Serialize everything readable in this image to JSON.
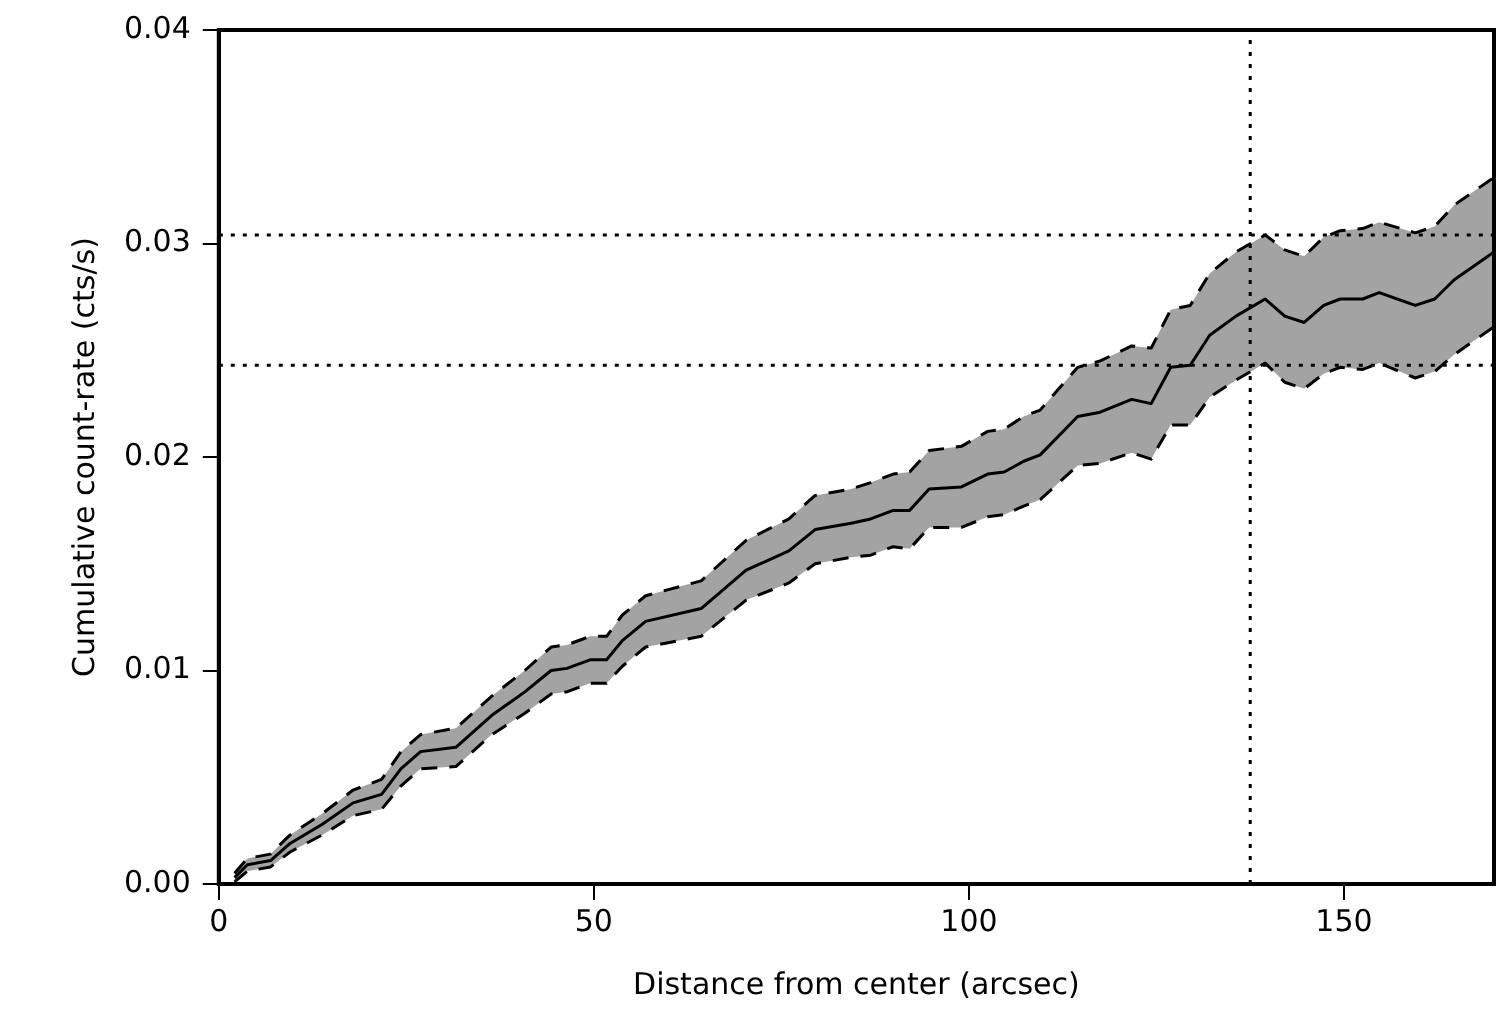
{
  "chart_data": {
    "type": "line",
    "xlabel": "Distance from center (arcsec)",
    "ylabel": "Cumulative count-rate (cts/s)",
    "xlim": [
      0,
      170
    ],
    "xticks": [
      0,
      50,
      100,
      150
    ],
    "ylim": [
      0,
      0.04
    ],
    "yticks": [
      {
        "value": 0,
        "label": "0.00"
      },
      {
        "value": 0.01,
        "label": "0.01"
      },
      {
        "value": 0.02,
        "label": "0.02"
      },
      {
        "value": 0.03,
        "label": "0.03"
      },
      {
        "value": 0.04,
        "label": "0.04"
      }
    ],
    "grid": false,
    "legend": false,
    "marker": "none",
    "x": [
      2.1,
      3.8,
      6.9,
      9.5,
      13.8,
      17.9,
      21.7,
      24.3,
      26.9,
      31.6,
      36.4,
      40.8,
      44.3,
      46.4,
      49.5,
      51.7,
      53.8,
      56.9,
      64.3,
      70.3,
      76,
      79.5,
      84.3,
      86.9,
      89.9,
      92.1,
      94.7,
      99,
      102.5,
      104.7,
      107.3,
      109.5,
      114.5,
      117.5,
      121.7,
      124.3,
      126.9,
      129.5,
      132.1,
      135.6,
      139.5,
      142.1,
      144.7,
      147.3,
      149.5,
      152.5,
      154.7,
      159.5,
      162.1,
      164.7,
      170
    ],
    "series": [
      {
        "color": "#000000",
        "line_style": "solid",
        "values": [
          0.0003,
          0.0009,
          0.0011,
          0.0019,
          0.0028,
          0.0038,
          0.0042,
          0.0054,
          0.0062,
          0.0064,
          0.0079,
          0.009,
          0.01,
          0.0101,
          0.0105,
          0.0105,
          0.0114,
          0.0123,
          0.0129,
          0.0147,
          0.0156,
          0.0166,
          0.0169,
          0.0171,
          0.0175,
          0.0175,
          0.0185,
          0.0186,
          0.0192,
          0.0193,
          0.0198,
          0.0201,
          0.0219,
          0.0221,
          0.0227,
          0.0225,
          0.0242,
          0.0243,
          0.0257,
          0.0266,
          0.0274,
          0.0266,
          0.0263,
          0.0271,
          0.0274,
          0.0274,
          0.0277,
          0.0271,
          0.0274,
          0.0283,
          0.0296
        ],
        "lower": [
          0.0001,
          0.0006,
          0.0008,
          0.0015,
          0.0023,
          0.0032,
          0.0035,
          0.0046,
          0.0054,
          0.0055,
          0.007,
          0.008,
          0.0089,
          0.009,
          0.0094,
          0.0094,
          0.0102,
          0.0111,
          0.0116,
          0.0133,
          0.0141,
          0.015,
          0.0153,
          0.0154,
          0.0158,
          0.0157,
          0.0167,
          0.0167,
          0.0172,
          0.0173,
          0.0177,
          0.018,
          0.0196,
          0.0197,
          0.0202,
          0.0199,
          0.0215,
          0.0215,
          0.0228,
          0.0236,
          0.0244,
          0.0235,
          0.0232,
          0.0239,
          0.0242,
          0.0241,
          0.0244,
          0.0237,
          0.024,
          0.0248,
          0.0261
        ],
        "upper": [
          0.0005,
          0.0012,
          0.0014,
          0.0023,
          0.0033,
          0.0044,
          0.0049,
          0.0062,
          0.007,
          0.0073,
          0.0088,
          0.01,
          0.0111,
          0.0112,
          0.0116,
          0.0116,
          0.0126,
          0.0135,
          0.0142,
          0.0161,
          0.0171,
          0.0182,
          0.0185,
          0.0188,
          0.0192,
          0.0193,
          0.0203,
          0.0205,
          0.0212,
          0.0213,
          0.0219,
          0.0222,
          0.0242,
          0.0245,
          0.0252,
          0.0251,
          0.0269,
          0.0271,
          0.0286,
          0.0296,
          0.0304,
          0.0297,
          0.0294,
          0.0303,
          0.0306,
          0.0307,
          0.031,
          0.0305,
          0.0308,
          0.0318,
          0.0331
        ]
      },
      {
        "color": "#000000",
        "line_style": "dashed",
        "values": [
          0.0001,
          0.0006,
          0.0008,
          0.0015,
          0.0023,
          0.0032,
          0.0035,
          0.0046,
          0.0054,
          0.0055,
          0.007,
          0.008,
          0.0089,
          0.009,
          0.0094,
          0.0094,
          0.0102,
          0.0111,
          0.0116,
          0.0133,
          0.0141,
          0.015,
          0.0153,
          0.0154,
          0.0158,
          0.0157,
          0.0167,
          0.0167,
          0.0172,
          0.0173,
          0.0177,
          0.018,
          0.0196,
          0.0197,
          0.0202,
          0.0199,
          0.0215,
          0.0215,
          0.0228,
          0.0236,
          0.0244,
          0.0235,
          0.0232,
          0.0239,
          0.0242,
          0.0241,
          0.0244,
          0.0237,
          0.024,
          0.0248,
          0.0261
        ]
      },
      {
        "color": "#000000",
        "line_style": "dashed",
        "values": [
          0.0005,
          0.0012,
          0.0014,
          0.0023,
          0.0033,
          0.0044,
          0.0049,
          0.0062,
          0.007,
          0.0073,
          0.0088,
          0.01,
          0.0111,
          0.0112,
          0.0116,
          0.0116,
          0.0126,
          0.0135,
          0.0142,
          0.0161,
          0.0171,
          0.0182,
          0.0185,
          0.0188,
          0.0192,
          0.0193,
          0.0203,
          0.0205,
          0.0212,
          0.0213,
          0.0219,
          0.0222,
          0.0242,
          0.0245,
          0.0252,
          0.0251,
          0.0269,
          0.0271,
          0.0286,
          0.0296,
          0.0304,
          0.0297,
          0.0294,
          0.0303,
          0.0306,
          0.0307,
          0.031,
          0.0305,
          0.0308,
          0.0318,
          0.0331
        ]
      }
    ],
    "ref_lines": [
      {
        "axis": "y",
        "value": 0.0304,
        "line_style": "dotted",
        "color": "#000000"
      },
      {
        "axis": "y",
        "value": 0.0243,
        "line_style": "dotted",
        "color": "#000000"
      },
      {
        "axis": "x",
        "value": 137.5,
        "line_style": "dotted",
        "color": "#000000"
      }
    ]
  }
}
